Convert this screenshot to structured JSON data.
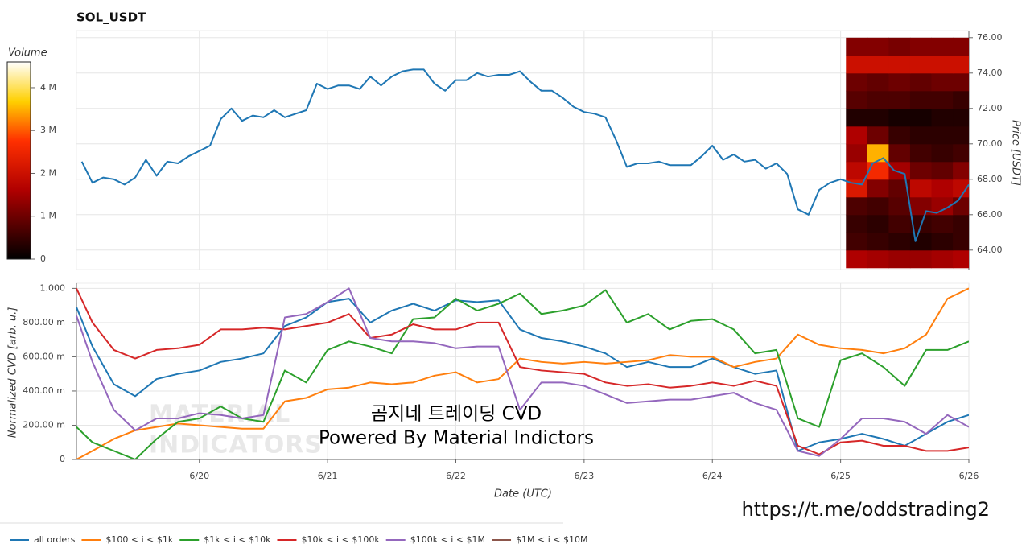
{
  "chart_data": [
    {
      "type": "line",
      "title": "SOL_USDT",
      "y_label": "Price [USDT]",
      "y_side": "right",
      "show_xtick_labels": false,
      "grid": true,
      "xlim": [
        1,
        168
      ],
      "xticks": [
        24,
        48,
        72,
        96,
        120,
        144,
        168
      ],
      "ylim": [
        62.9,
        76.4
      ],
      "yticks": [
        {
          "value": 64,
          "label": "64.00"
        },
        {
          "value": 66,
          "label": "66.00"
        },
        {
          "value": 68,
          "label": "68.00"
        },
        {
          "value": 70,
          "label": "70.00"
        },
        {
          "value": 72,
          "label": "72.00"
        },
        {
          "value": 74,
          "label": "74.00"
        },
        {
          "value": 76,
          "label": "76.00"
        }
      ],
      "x": [
        2,
        4,
        6,
        8,
        10,
        12,
        14,
        16,
        18,
        20,
        22,
        24,
        26,
        28,
        30,
        32,
        34,
        36,
        38,
        40,
        42,
        44,
        46,
        48,
        50,
        52,
        54,
        56,
        58,
        60,
        62,
        64,
        66,
        68,
        70,
        72,
        74,
        76,
        78,
        80,
        82,
        84,
        86,
        88,
        90,
        92,
        94,
        96,
        98,
        100,
        102,
        104,
        106,
        108,
        110,
        112,
        114,
        116,
        118,
        120,
        122,
        124,
        126,
        128,
        130,
        132,
        134,
        136,
        138,
        140,
        142,
        144,
        146,
        148,
        150,
        152,
        154,
        156,
        158,
        160,
        162,
        164,
        166,
        168
      ],
      "series": [
        {
          "color": "#1f77b4",
          "values": [
            69.0,
            67.8,
            68.1,
            68.0,
            67.7,
            68.1,
            69.1,
            68.2,
            69.0,
            68.9,
            69.3,
            69.6,
            69.9,
            71.4,
            72.0,
            71.3,
            71.6,
            71.5,
            71.9,
            71.5,
            71.7,
            71.9,
            73.4,
            73.1,
            73.3,
            73.3,
            73.1,
            73.8,
            73.3,
            73.8,
            74.1,
            74.2,
            74.2,
            73.4,
            73.0,
            73.6,
            73.6,
            74.0,
            73.8,
            73.9,
            73.9,
            74.1,
            73.5,
            73.0,
            73.0,
            72.6,
            72.1,
            71.8,
            71.7,
            71.5,
            70.2,
            68.7,
            68.9,
            68.9,
            69.0,
            68.8,
            68.8,
            68.8,
            69.3,
            69.9,
            69.1,
            69.4,
            69.0,
            69.1,
            68.6,
            68.9,
            68.3,
            66.3,
            66.0,
            67.4,
            67.8,
            68.0,
            67.8,
            67.7,
            68.9,
            69.2,
            68.5,
            68.3,
            64.5,
            66.2,
            66.1,
            66.4,
            66.8,
            67.7
          ]
        }
      ],
      "heatmap": {
        "x_edges": [
          145,
          149,
          153,
          157,
          161,
          165,
          168
        ],
        "y_edges": [
          63,
          64,
          65,
          66,
          67,
          68,
          69,
          70,
          71,
          72,
          73,
          74,
          75,
          76
        ],
        "values": [
          [
            1600000,
            1500000,
            1400000,
            1400000,
            1500000,
            1600000
          ],
          [
            600000,
            500000,
            400000,
            300000,
            400000,
            500000
          ],
          [
            500000,
            400000,
            600000,
            500000,
            600000,
            500000
          ],
          [
            700000,
            600000,
            800000,
            1200000,
            1400000,
            1000000
          ],
          [
            2200000,
            1200000,
            900000,
            1800000,
            1600000,
            1800000
          ],
          [
            1800000,
            2600000,
            1500000,
            1000000,
            900000,
            1200000
          ],
          [
            1400000,
            3500000,
            900000,
            600000,
            500000,
            600000
          ],
          [
            1600000,
            1000000,
            500000,
            400000,
            400000,
            400000
          ],
          [
            300000,
            300000,
            200000,
            200000,
            300000,
            300000
          ],
          [
            800000,
            700000,
            700000,
            600000,
            600000,
            500000
          ],
          [
            1000000,
            900000,
            1000000,
            900000,
            1000000,
            1000000
          ],
          [
            2000000,
            2000000,
            2000000,
            2000000,
            2000000,
            2000000
          ],
          [
            1200000,
            1200000,
            1100000,
            1200000,
            1200000,
            1200000
          ]
        ]
      },
      "colorbar": {
        "label": "Volume",
        "lim": [
          0,
          4600000
        ],
        "ticks": [
          0,
          {
            "value": 1000000,
            "label": "1 M"
          },
          {
            "value": 2000000,
            "label": "2 M"
          },
          {
            "value": 3000000,
            "label": "3 M"
          },
          {
            "value": 4000000,
            "label": "4 M"
          }
        ]
      }
    },
    {
      "type": "line",
      "x_label": "Date (UTC)",
      "y_label": "Normalized CVD [arb. u.]",
      "y_side": "left",
      "show_xtick_labels": true,
      "grid": true,
      "legend": "bottom-left",
      "xlim": [
        1,
        168
      ],
      "xticks": [
        {
          "value": 24,
          "label": "6/20"
        },
        {
          "value": 48,
          "label": "6/21"
        },
        {
          "value": 72,
          "label": "6/22"
        },
        {
          "value": 96,
          "label": "6/23"
        },
        {
          "value": 120,
          "label": "6/24"
        },
        {
          "value": 144,
          "label": "6/25"
        },
        {
          "value": 168,
          "label": "6/26"
        }
      ],
      "ylim": [
        0,
        1.03
      ],
      "yticks": [
        0,
        {
          "value": 0.2,
          "label": "200.00 m"
        },
        {
          "value": 0.4,
          "label": "400.00 m"
        },
        {
          "value": 0.6,
          "label": "600.00 m"
        },
        {
          "value": 0.8,
          "label": "800.00 m"
        },
        {
          "value": 1,
          "label": "1.000"
        }
      ],
      "watermark": [
        "MATERIAL",
        "INDICATORS"
      ],
      "annotations": [
        "곰지네 트레이딩 CVD",
        "Powered By Material Indictors"
      ],
      "x": [
        1,
        4,
        8,
        12,
        16,
        20,
        24,
        28,
        32,
        36,
        40,
        44,
        48,
        52,
        56,
        60,
        64,
        68,
        72,
        76,
        80,
        84,
        88,
        92,
        96,
        100,
        104,
        108,
        112,
        116,
        120,
        124,
        128,
        132,
        136,
        140,
        144,
        148,
        152,
        156,
        160,
        164,
        168
      ],
      "series": [
        {
          "name": "all orders",
          "color": "#1f77b4",
          "values": [
            0.89,
            0.66,
            0.44,
            0.37,
            0.47,
            0.5,
            0.52,
            0.57,
            0.59,
            0.62,
            0.78,
            0.83,
            0.92,
            0.94,
            0.8,
            0.87,
            0.91,
            0.87,
            0.93,
            0.92,
            0.93,
            0.76,
            0.71,
            0.69,
            0.66,
            0.62,
            0.54,
            0.57,
            0.54,
            0.54,
            0.59,
            0.54,
            0.5,
            0.52,
            0.05,
            0.1,
            0.12,
            0.15,
            0.12,
            0.08,
            0.15,
            0.22,
            0.26
          ]
        },
        {
          "name": "$100 < i < $1k",
          "color": "#ff7f0e",
          "values": [
            0,
            0.05,
            0.12,
            0.17,
            0.19,
            0.21,
            0.2,
            0.19,
            0.18,
            0.18,
            0.34,
            0.36,
            0.41,
            0.42,
            0.45,
            0.44,
            0.45,
            0.49,
            0.51,
            0.45,
            0.47,
            0.59,
            0.57,
            0.56,
            0.57,
            0.56,
            0.57,
            0.58,
            0.61,
            0.6,
            0.6,
            0.54,
            0.57,
            0.59,
            0.73,
            0.67,
            0.65,
            0.64,
            0.62,
            0.65,
            0.73,
            0.94,
            1.0
          ]
        },
        {
          "name": "$1k < i < $10k",
          "color": "#2ca02c",
          "values": [
            0.19,
            0.1,
            0.05,
            0,
            0.12,
            0.22,
            0.24,
            0.31,
            0.24,
            0.22,
            0.52,
            0.45,
            0.64,
            0.69,
            0.66,
            0.62,
            0.82,
            0.83,
            0.94,
            0.87,
            0.91,
            0.97,
            0.85,
            0.87,
            0.9,
            0.99,
            0.8,
            0.85,
            0.76,
            0.81,
            0.82,
            0.76,
            0.62,
            0.64,
            0.24,
            0.19,
            0.58,
            0.62,
            0.54,
            0.43,
            0.64,
            0.64,
            0.69
          ]
        },
        {
          "name": "$10k < i < $100k",
          "color": "#d62728",
          "values": [
            1.0,
            0.8,
            0.64,
            0.59,
            0.64,
            0.65,
            0.67,
            0.76,
            0.76,
            0.77,
            0.76,
            0.78,
            0.8,
            0.85,
            0.71,
            0.73,
            0.79,
            0.76,
            0.76,
            0.8,
            0.8,
            0.54,
            0.52,
            0.51,
            0.5,
            0.45,
            0.43,
            0.44,
            0.42,
            0.43,
            0.45,
            0.43,
            0.46,
            0.43,
            0.08,
            0.03,
            0.1,
            0.11,
            0.08,
            0.08,
            0.05,
            0.05,
            0.07
          ]
        },
        {
          "name": "$100k < i < $1M",
          "color": "#9467bd",
          "values": [
            0.84,
            0.57,
            0.29,
            0.17,
            0.24,
            0.24,
            0.27,
            0.26,
            0.24,
            0.26,
            0.83,
            0.85,
            0.92,
            1.0,
            0.71,
            0.69,
            0.69,
            0.68,
            0.65,
            0.66,
            0.66,
            0.29,
            0.45,
            0.45,
            0.43,
            0.38,
            0.33,
            0.34,
            0.35,
            0.35,
            0.37,
            0.39,
            0.33,
            0.29,
            0.05,
            0.02,
            0.12,
            0.24,
            0.24,
            0.22,
            0.15,
            0.26,
            0.19
          ]
        },
        {
          "name": "$1M < i < $10M",
          "color": "#8c564b"
        }
      ]
    }
  ],
  "footer_link": "https://t.me/oddstrading2"
}
